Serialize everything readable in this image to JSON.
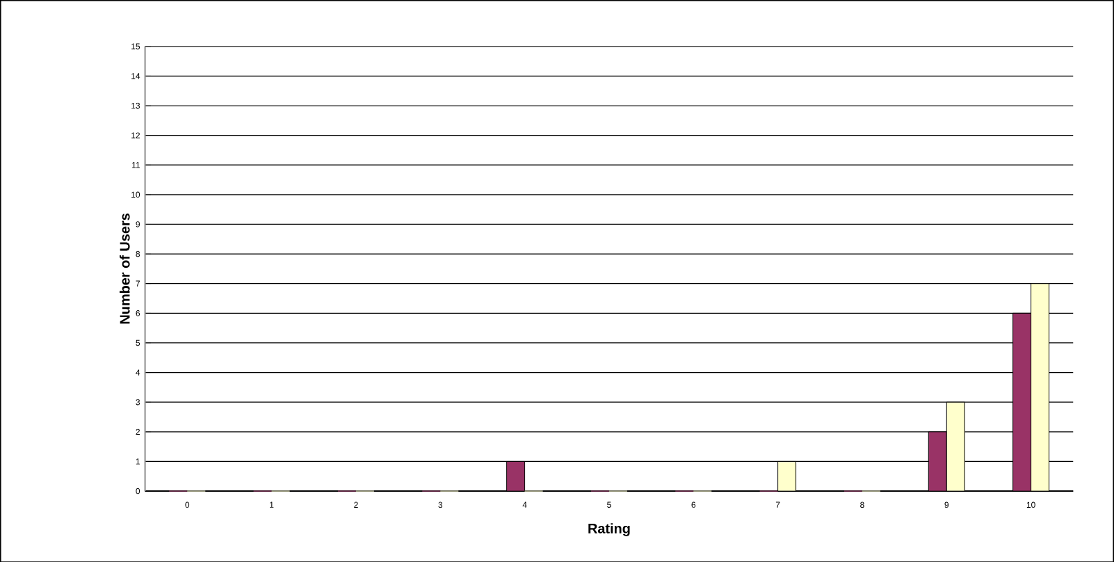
{
  "chart_data": {
    "type": "bar",
    "xlabel": "Rating",
    "ylabel": "Number of Users",
    "categories": [
      "0",
      "1",
      "2",
      "3",
      "4",
      "5",
      "6",
      "7",
      "8",
      "9",
      "10"
    ],
    "series": [
      {
        "color": "#993366",
        "values": [
          0,
          0,
          0,
          0,
          1,
          0,
          0,
          0,
          0,
          2,
          6
        ]
      },
      {
        "color": "#ffffcc",
        "values": [
          0,
          0,
          0,
          0,
          0,
          0,
          0,
          1,
          0,
          3,
          7
        ]
      }
    ],
    "ylim": [
      0,
      15
    ],
    "yticks": [
      0,
      1,
      2,
      3,
      4,
      5,
      6,
      7,
      8,
      9,
      10,
      11,
      12,
      13,
      14,
      15
    ],
    "grid": "y"
  }
}
